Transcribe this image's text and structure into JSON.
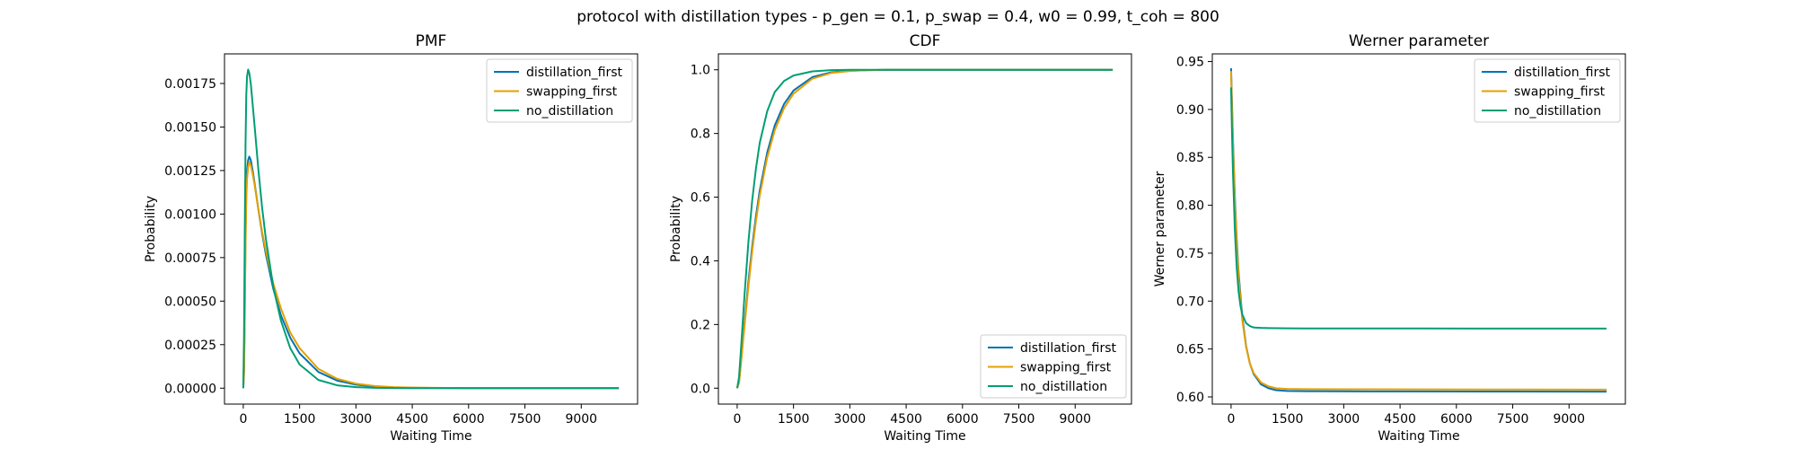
{
  "figure": {
    "title": "protocol with distillation types - p_gen = 0.1, p_swap = 0.4, w0 = 0.99, t_coh = 800"
  },
  "colors": {
    "distillation_first": "#0072B2",
    "swapping_first": "#E69F00",
    "no_distillation": "#009E73"
  },
  "chart_data": [
    {
      "type": "line",
      "title": "PMF",
      "xlabel": "Waiting Time",
      "ylabel": "Probability",
      "xlim": [
        -500,
        10500
      ],
      "ylim": [
        -9.15e-05,
        0.00192
      ],
      "xticks": [
        0,
        1500,
        3000,
        4500,
        6000,
        7500,
        9000
      ],
      "xtick_labels": [
        "0",
        "1500",
        "3000",
        "4500",
        "6000",
        "7500",
        "9000"
      ],
      "yticks": [
        0,
        0.00025,
        0.0005,
        0.00075,
        0.001,
        0.00125,
        0.0015,
        0.00175
      ],
      "ytick_labels": [
        "0.00000",
        "0.00025",
        "0.00050",
        "0.00075",
        "0.00100",
        "0.00125",
        "0.00150",
        "0.00175"
      ],
      "legend": "top-right",
      "series": [
        {
          "name": "distillation_first",
          "x": [
            0,
            20,
            40,
            60,
            80,
            100,
            130,
            160,
            200,
            250,
            300,
            400,
            500,
            600,
            800,
            1000,
            1250,
            1500,
            2000,
            2500,
            3000,
            3500,
            4000,
            4500,
            6000,
            8000,
            10000
          ],
          "y": [
            0,
            0.0001,
            0.00045,
            0.00088,
            0.00113,
            0.00125,
            0.00131,
            0.00133,
            0.00131,
            0.00125,
            0.00118,
            0.00103,
            0.00089,
            0.00077,
            0.00057,
            0.00042,
            0.00029,
            0.0002,
            9.33e-05,
            4.34e-05,
            2.02e-05,
            9.4e-06,
            4.4e-06,
            2e-06,
            2e-07,
            0,
            0
          ]
        },
        {
          "name": "swapping_first",
          "x": [
            0,
            20,
            40,
            60,
            80,
            100,
            130,
            160,
            200,
            250,
            300,
            400,
            500,
            600,
            800,
            1000,
            1250,
            1500,
            2000,
            2500,
            3000,
            3500,
            4000,
            4500,
            6000,
            8000,
            10000
          ],
          "y": [
            0,
            8e-05,
            0.0004,
            0.00082,
            0.00108,
            0.0012,
            0.00127,
            0.0013,
            0.00128,
            0.00123,
            0.00117,
            0.00103,
            0.0009,
            0.00079,
            0.0006,
            0.00046,
            0.00032,
            0.00023,
            0.000111,
            5.38e-05,
            2.6e-05,
            1.26e-05,
            6.1e-06,
            3e-06,
            3e-07,
            0,
            0
          ]
        },
        {
          "name": "no_distillation",
          "x": [
            0,
            20,
            40,
            60,
            80,
            100,
            130,
            160,
            200,
            250,
            300,
            400,
            500,
            600,
            800,
            1000,
            1250,
            1500,
            2000,
            2500,
            3000,
            3500,
            4000,
            4500,
            6000,
            8000,
            10000
          ],
          "y": [
            0,
            0.0003,
            0.0009,
            0.0014,
            0.00168,
            0.00179,
            0.00183,
            0.00181,
            0.00175,
            0.00163,
            0.00151,
            0.00126,
            0.00104,
            0.00086,
            0.00058,
            0.00039,
            0.00023,
            0.000136,
            4.72e-05,
            1.64e-05,
            5.7e-06,
            2e-06,
            7e-07,
            2e-07,
            0,
            0,
            0
          ]
        }
      ]
    },
    {
      "type": "line",
      "title": "CDF",
      "xlabel": "Waiting Time",
      "ylabel": "Probability",
      "xlim": [
        -500,
        10500
      ],
      "ylim": [
        -0.05,
        1.05
      ],
      "xticks": [
        0,
        1500,
        3000,
        4500,
        6000,
        7500,
        9000
      ],
      "xtick_labels": [
        "0",
        "1500",
        "3000",
        "4500",
        "6000",
        "7500",
        "9000"
      ],
      "yticks": [
        0,
        0.2,
        0.4,
        0.6,
        0.8,
        1.0
      ],
      "ytick_labels": [
        "0.0",
        "0.2",
        "0.4",
        "0.6",
        "0.8",
        "1.0"
      ],
      "legend": "bottom-right",
      "series": [
        {
          "name": "distillation_first",
          "x": [
            0,
            50,
            100,
            150,
            200,
            300,
            400,
            500,
            600,
            800,
            1000,
            1250,
            1500,
            2000,
            2500,
            3000,
            3500,
            4000,
            4500,
            5000,
            6000,
            8000,
            10000
          ],
          "y": [
            0,
            0.02,
            0.08,
            0.145,
            0.21,
            0.335,
            0.445,
            0.54,
            0.62,
            0.74,
            0.825,
            0.893,
            0.935,
            0.977,
            0.992,
            0.997,
            0.999,
            1.0,
            1.0,
            1.0,
            1.0,
            1.0,
            1.0
          ]
        },
        {
          "name": "swapping_first",
          "x": [
            0,
            50,
            100,
            150,
            200,
            300,
            400,
            500,
            600,
            800,
            1000,
            1250,
            1500,
            2000,
            2500,
            3000,
            3500,
            4000,
            4500,
            5000,
            6000,
            8000,
            10000
          ],
          "y": [
            0,
            0.018,
            0.075,
            0.14,
            0.2,
            0.32,
            0.43,
            0.525,
            0.605,
            0.725,
            0.81,
            0.88,
            0.925,
            0.972,
            0.99,
            0.996,
            0.999,
            1.0,
            1.0,
            1.0,
            1.0,
            1.0,
            1.0
          ]
        },
        {
          "name": "no_distillation",
          "x": [
            0,
            50,
            100,
            150,
            200,
            300,
            400,
            500,
            600,
            800,
            1000,
            1250,
            1500,
            2000,
            2500,
            3000,
            3500,
            4000,
            4500,
            5000,
            6000,
            8000,
            10000
          ],
          "y": [
            0,
            0.035,
            0.12,
            0.21,
            0.3,
            0.46,
            0.59,
            0.69,
            0.77,
            0.87,
            0.93,
            0.965,
            0.982,
            0.995,
            0.999,
            1.0,
            1.0,
            1.0,
            1.0,
            1.0,
            1.0,
            1.0,
            1.0
          ]
        }
      ]
    },
    {
      "type": "line",
      "title": "Werner parameter",
      "xlabel": "Waiting Time",
      "ylabel": "Werner parameter",
      "xlim": [
        -500,
        10500
      ],
      "ylim": [
        0.5925,
        0.958
      ],
      "xticks": [
        0,
        1500,
        3000,
        4500,
        6000,
        7500,
        9000
      ],
      "xtick_labels": [
        "0",
        "1500",
        "3000",
        "4500",
        "6000",
        "7500",
        "9000"
      ],
      "yticks": [
        0.6,
        0.65,
        0.7,
        0.75,
        0.8,
        0.85,
        0.9,
        0.95
      ],
      "ytick_labels": [
        "0.60",
        "0.65",
        "0.70",
        "0.75",
        "0.80",
        "0.85",
        "0.90",
        "0.95"
      ],
      "legend": "top-right",
      "series": [
        {
          "name": "distillation_first",
          "x": [
            0,
            25,
            50,
            100,
            150,
            200,
            300,
            400,
            500,
            600,
            800,
            1000,
            1200,
            1500,
            2000,
            3000,
            5000,
            7500,
            10000
          ],
          "y": [
            0.943,
            0.905,
            0.87,
            0.81,
            0.765,
            0.73,
            0.683,
            0.653,
            0.635,
            0.624,
            0.613,
            0.609,
            0.607,
            0.6062,
            0.606,
            0.6058,
            0.6057,
            0.6056,
            0.6055
          ]
        },
        {
          "name": "swapping_first",
          "x": [
            0,
            25,
            50,
            100,
            150,
            200,
            300,
            400,
            500,
            600,
            800,
            1000,
            1200,
            1500,
            2000,
            3000,
            5000,
            7500,
            10000
          ],
          "y": [
            0.94,
            0.9,
            0.865,
            0.805,
            0.76,
            0.725,
            0.68,
            0.652,
            0.635,
            0.625,
            0.615,
            0.611,
            0.609,
            0.6083,
            0.6081,
            0.608,
            0.6078,
            0.6077,
            0.6076
          ]
        },
        {
          "name": "no_distillation",
          "x": [
            0,
            25,
            50,
            100,
            150,
            200,
            250,
            300,
            400,
            500,
            600,
            800,
            1000,
            1500,
            2000,
            3000,
            5000,
            7500,
            10000
          ],
          "y": [
            0.923,
            0.875,
            0.835,
            0.775,
            0.735,
            0.71,
            0.695,
            0.686,
            0.677,
            0.674,
            0.6725,
            0.672,
            0.6718,
            0.6716,
            0.6715,
            0.6714,
            0.6714,
            0.6713,
            0.6713
          ]
        }
      ]
    }
  ]
}
